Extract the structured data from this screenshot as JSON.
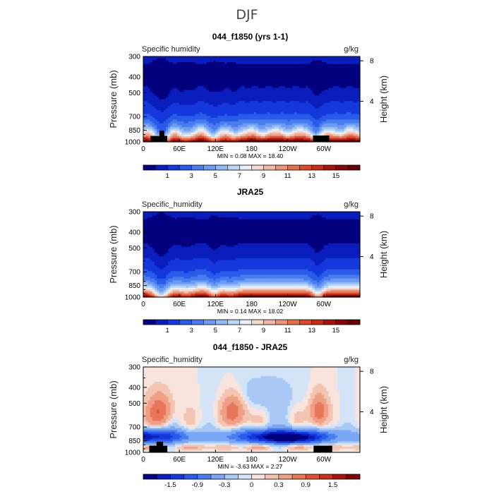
{
  "page_title": "DJF",
  "chart_data": [
    {
      "type": "heatmap",
      "title": "044_f1850 (yrs 1-1)",
      "subtitle_left": "Specific humidity",
      "units": "g/kg",
      "xlabel": "",
      "ylabel": "Pressure (mb)",
      "ylabel_right": "Height (km)",
      "x_ticks": [
        {
          "lon": 0,
          "label": "0"
        },
        {
          "lon": 60,
          "label": "60E"
        },
        {
          "lon": 120,
          "label": "120E"
        },
        {
          "lon": 180,
          "label": "180"
        },
        {
          "lon": 240,
          "label": "120W"
        },
        {
          "lon": 300,
          "label": "60W"
        }
      ],
      "xlim": [
        0,
        360
      ],
      "y_ticks": [
        300,
        400,
        500,
        700,
        850,
        1000
      ],
      "ylim": [
        1000,
        300
      ],
      "height_ticks": [
        {
          "km": 4,
          "label": "4"
        },
        {
          "km": 8,
          "label": "8"
        }
      ],
      "stats": "MIN =    0.08   MAX =   18.40",
      "min": 0.08,
      "max": 18.4,
      "colorbar": {
        "labels": [
          "1",
          "3",
          "5",
          "7",
          "9",
          "11",
          "13",
          "15"
        ],
        "label_positions": [
          1,
          3,
          5,
          7,
          9,
          11,
          13,
          15
        ],
        "levels": [
          0,
          0.5,
          1,
          2,
          3,
          4,
          5,
          6,
          7,
          8,
          9,
          10,
          11,
          12,
          13,
          14,
          15,
          16,
          99
        ]
      },
      "field": "model",
      "terrain": [
        {
          "lon0": 12,
          "lon1": 40,
          "p": 920
        },
        {
          "lon0": 27,
          "lon1": 35,
          "p": 855
        },
        {
          "lon0": 282,
          "lon1": 309,
          "p": 915
        }
      ]
    },
    {
      "type": "heatmap",
      "title": "JRA25",
      "subtitle_left": "Specific_humidity",
      "units": "g/kg",
      "xlabel": "",
      "ylabel": "Pressure (mb)",
      "ylabel_right": "Height (km)",
      "x_ticks": [
        {
          "lon": 0,
          "label": "0"
        },
        {
          "lon": 60,
          "label": "60E"
        },
        {
          "lon": 120,
          "label": "120E"
        },
        {
          "lon": 180,
          "label": "180"
        },
        {
          "lon": 240,
          "label": "120W"
        },
        {
          "lon": 300,
          "label": "60W"
        }
      ],
      "xlim": [
        0,
        360
      ],
      "y_ticks": [
        300,
        400,
        500,
        700,
        850,
        1000
      ],
      "ylim": [
        1000,
        300
      ],
      "height_ticks": [
        {
          "km": 4,
          "label": "4"
        },
        {
          "km": 8,
          "label": "8"
        }
      ],
      "stats": "MIN =    0.14   MAX =   18.02",
      "min": 0.14,
      "max": 18.02,
      "colorbar": {
        "labels": [
          "1",
          "3",
          "5",
          "7",
          "9",
          "11",
          "13",
          "15"
        ],
        "label_positions": [
          1,
          3,
          5,
          7,
          9,
          11,
          13,
          15
        ],
        "levels": [
          0,
          0.5,
          1,
          2,
          3,
          4,
          5,
          6,
          7,
          8,
          9,
          10,
          11,
          12,
          13,
          14,
          15,
          16,
          99
        ]
      },
      "field": "obs",
      "terrain": []
    },
    {
      "type": "heatmap",
      "title": "044_f1850 - JRA25",
      "subtitle_left": "Specific_humidity",
      "units": "g/kg",
      "xlabel": "",
      "ylabel": "Pressure (mb)",
      "ylabel_right": "Height (km)",
      "x_ticks": [
        {
          "lon": 0,
          "label": "0"
        },
        {
          "lon": 60,
          "label": "60E"
        },
        {
          "lon": 120,
          "label": "120E"
        },
        {
          "lon": 180,
          "label": "180"
        },
        {
          "lon": 240,
          "label": "120W"
        },
        {
          "lon": 300,
          "label": "60W"
        }
      ],
      "xlim": [
        0,
        360
      ],
      "y_ticks": [
        300,
        400,
        500,
        700,
        850,
        1000
      ],
      "ylim": [
        1000,
        300
      ],
      "height_ticks": [
        {
          "km": 4,
          "label": "4"
        },
        {
          "km": 8,
          "label": "8"
        }
      ],
      "stats": "MIN =   -3.63   MAX =    2.27",
      "min": -3.63,
      "max": 2.27,
      "colorbar": {
        "labels": [
          "-1.5",
          "-0.9",
          "-0.3",
          "0",
          "0.3",
          "0.9",
          "1.5"
        ],
        "label_positions": [
          -1.5,
          -0.9,
          -0.3,
          0,
          0.3,
          0.9,
          1.5
        ],
        "levels": [
          -99,
          -1.8,
          -1.5,
          -1.2,
          -0.9,
          -0.6,
          -0.3,
          -0.1,
          0,
          0.1,
          0.3,
          0.6,
          0.9,
          1.2,
          1.5,
          1.8,
          99
        ]
      },
      "field": "diff",
      "terrain": [
        {
          "lon0": 10,
          "lon1": 40,
          "p": 910
        },
        {
          "lon0": 22,
          "lon1": 33,
          "p": 860
        },
        {
          "lon0": 283,
          "lon1": 314,
          "p": 910
        }
      ]
    }
  ],
  "colors": {
    "humidity": [
      "#03017d",
      "#0a1dbd",
      "#1438dc",
      "#2a5ae8",
      "#4a7cf0",
      "#6e9cf4",
      "#95bbf5",
      "#bcd6f7",
      "#e7eff8",
      "#f5d9cf",
      "#f1b8a7",
      "#ec9479",
      "#e4704e",
      "#d84c2c",
      "#c62c1a",
      "#a8140d",
      "#87070a",
      "#640006"
    ],
    "diff": [
      "#03017d",
      "#0a1dbd",
      "#1438dc",
      "#2a5ae8",
      "#4a7cf0",
      "#7aa7f3",
      "#a9c8f6",
      "#d4e4f8",
      "#f8e4dc",
      "#f3c4b1",
      "#ee9f85",
      "#e7775a",
      "#dc5234",
      "#c7301d",
      "#a5130c",
      "#7d0508"
    ],
    "terrain": "#000000"
  }
}
